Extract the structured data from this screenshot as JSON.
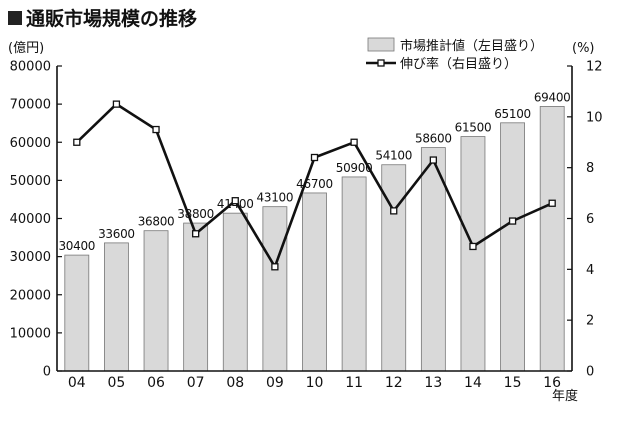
{
  "chart_data": {
    "type": "bar",
    "title": "通販市場規模の推移",
    "left_unit": "(億円)",
    "right_unit": "(%)",
    "xlabel": "年度",
    "categories": [
      "04",
      "05",
      "06",
      "07",
      "08",
      "09",
      "10",
      "11",
      "12",
      "13",
      "14",
      "15",
      "16"
    ],
    "y_left_ticks": [
      "0",
      "10000",
      "20000",
      "30000",
      "40000",
      "50000",
      "60000",
      "70000",
      "80000"
    ],
    "y_right_ticks": [
      "0",
      "2",
      "4",
      "6",
      "8",
      "10",
      "12"
    ],
    "ylim_left": [
      0,
      80000
    ],
    "ylim_right": [
      0,
      12
    ],
    "legend_position": "top-right",
    "series": [
      {
        "name": "市場推計値（左目盛り）",
        "kind": "bar",
        "axis": "left",
        "values": [
          30400,
          33600,
          36800,
          38800,
          41400,
          43100,
          46700,
          50900,
          54100,
          58600,
          61500,
          65100,
          69400
        ],
        "labels": [
          "30400",
          "33600",
          "36800",
          "38800",
          "41400",
          "43100",
          "46700",
          "50900",
          "54100",
          "58600",
          "61500",
          "65100",
          "69400"
        ]
      },
      {
        "name": "伸び率（右目盛り）",
        "kind": "line",
        "axis": "right",
        "values": [
          9.0,
          10.5,
          9.5,
          5.4,
          6.7,
          4.1,
          8.4,
          9.0,
          6.3,
          8.3,
          4.9,
          5.9,
          6.6
        ]
      }
    ]
  }
}
